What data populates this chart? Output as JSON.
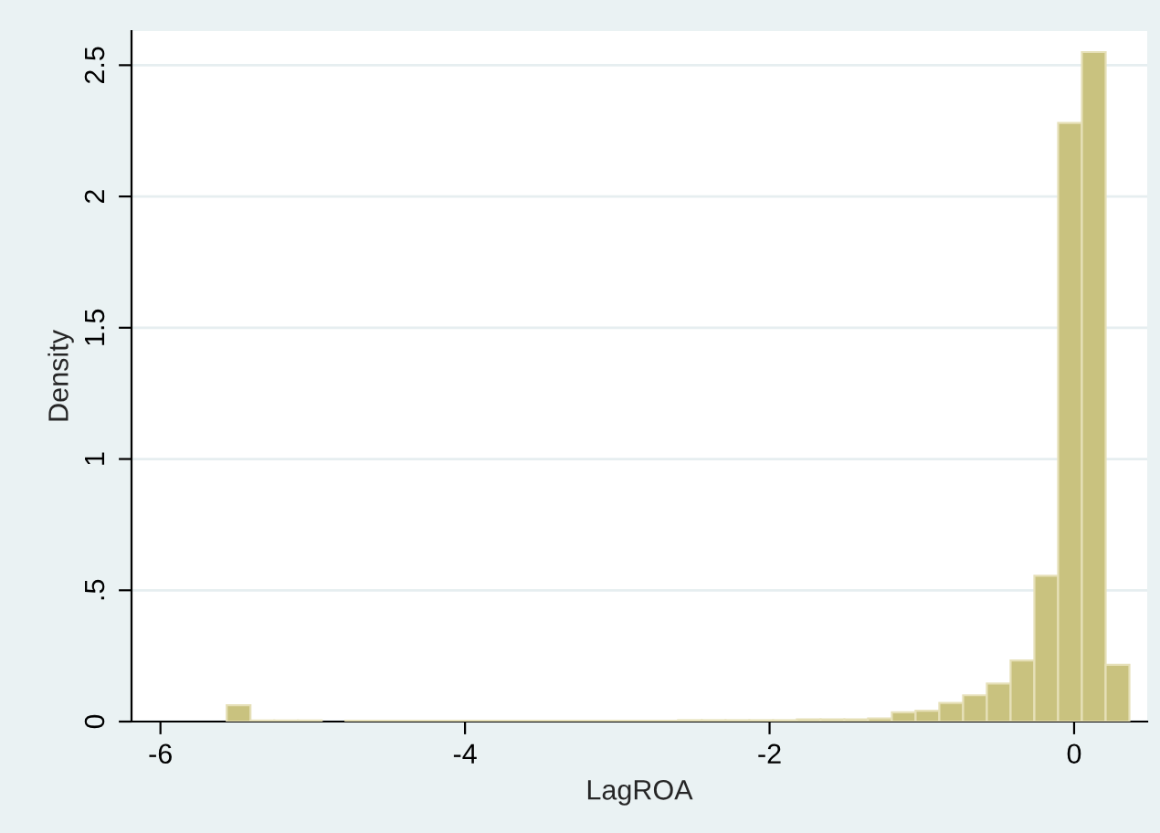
{
  "chart_data": {
    "type": "histogram",
    "xlabel": "LagROA",
    "ylabel": "Density",
    "color": "#c9c27f",
    "bins": [
      -5.565,
      -5.409,
      -5.253,
      -5.097,
      -4.941,
      -4.785,
      -4.629,
      -4.473,
      -4.317,
      -4.161,
      -4.005,
      -3.849,
      -3.693,
      -3.537,
      -3.381,
      -3.225,
      -3.069,
      -2.913,
      -2.757,
      -2.601,
      -2.445,
      -2.289,
      -2.133,
      -1.977,
      -1.821,
      -1.665,
      -1.509,
      -1.353,
      -1.197,
      -1.041,
      -0.885,
      -0.729,
      -0.573,
      -0.417,
      -0.261,
      -0.105,
      0.051,
      0.207,
      0.363
    ],
    "values": [
      0.062,
      0.004,
      0.004,
      0.004,
      0,
      0.003,
      0.003,
      0.003,
      0.003,
      0.003,
      0.003,
      0.003,
      0.003,
      0.003,
      0.003,
      0.003,
      0.003,
      0.003,
      0.003,
      0.005,
      0.005,
      0.005,
      0.005,
      0.005,
      0.008,
      0.008,
      0.008,
      0.012,
      0.035,
      0.041,
      0.071,
      0.1,
      0.145,
      0.233,
      0.555,
      2.28,
      2.55,
      0.216
    ],
    "xlim": [
      -6.19,
      0.48
    ],
    "xticks": [
      -6,
      -4,
      -2,
      0
    ],
    "ylim": [
      0,
      2.63
    ],
    "yticks": [
      0,
      {
        "value": 0.5,
        "label": ".5"
      },
      1,
      1.5,
      2,
      2.5
    ],
    "grid": "y"
  }
}
